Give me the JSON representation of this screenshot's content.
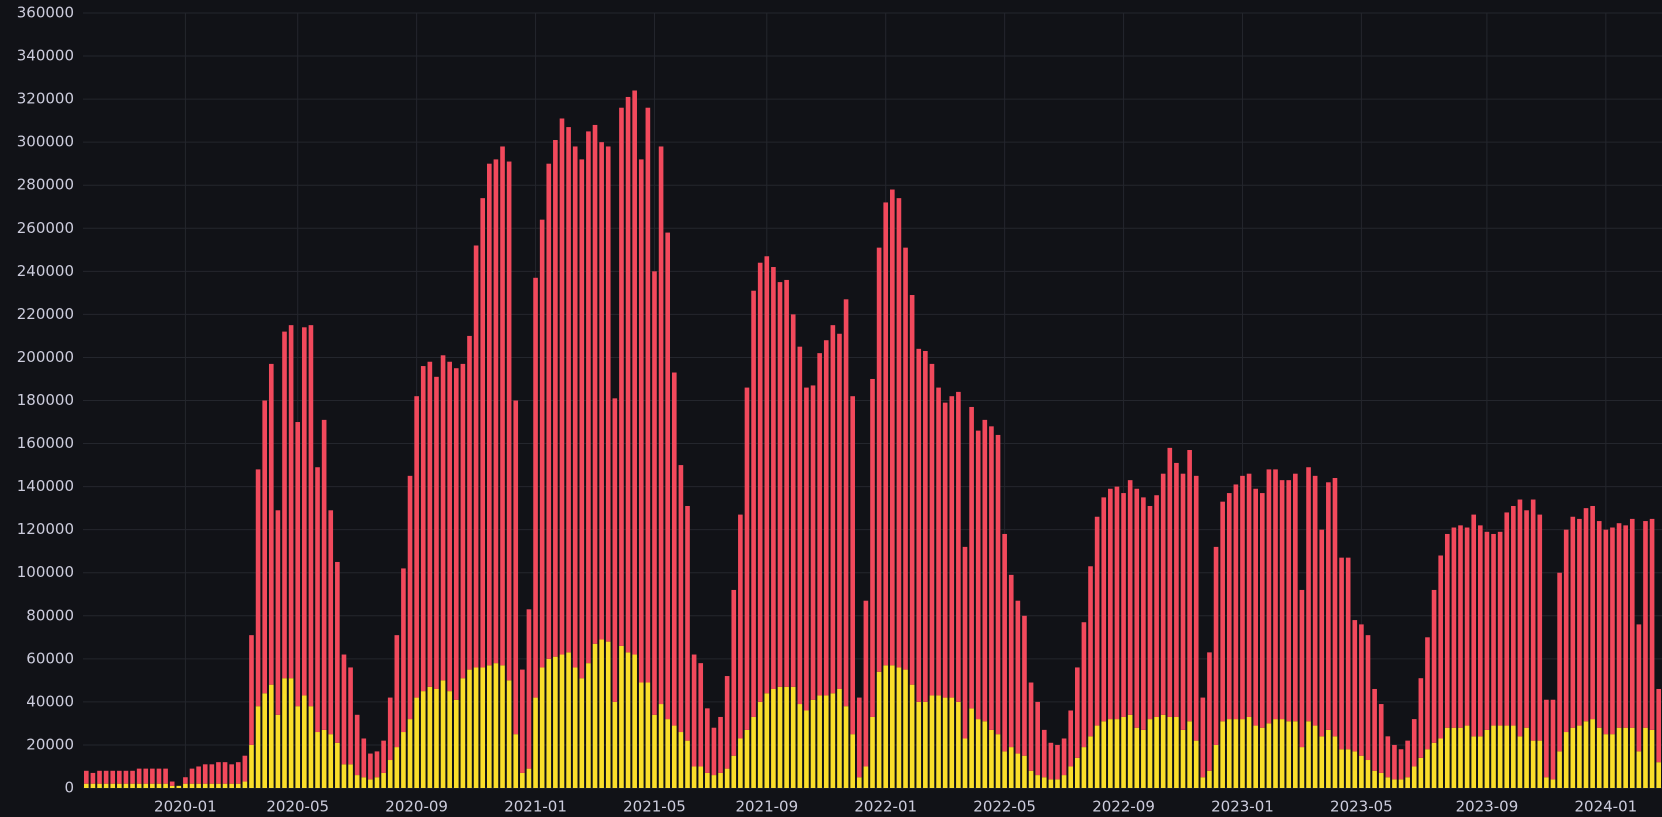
{
  "chart_data": {
    "type": "stacked-bar",
    "categories": [
      null,
      null,
      null,
      null,
      null,
      null,
      null,
      null,
      null,
      null,
      null,
      null,
      null,
      null,
      null,
      "2020-01",
      null,
      null,
      null,
      null,
      null,
      null,
      null,
      null,
      null,
      null,
      null,
      null,
      null,
      null,
      null,
      null,
      "2020-05",
      null,
      null,
      null,
      null,
      null,
      null,
      null,
      null,
      null,
      null,
      null,
      null,
      null,
      null,
      null,
      null,
      null,
      "2020-09",
      null,
      null,
      null,
      null,
      null,
      null,
      null,
      null,
      null,
      null,
      null,
      null,
      null,
      null,
      null,
      null,
      null,
      "2021-01",
      null,
      null,
      null,
      null,
      null,
      null,
      null,
      null,
      null,
      null,
      null,
      null,
      null,
      null,
      null,
      null,
      null,
      "2021-05",
      null,
      null,
      null,
      null,
      null,
      null,
      null,
      null,
      null,
      null,
      null,
      null,
      null,
      null,
      null,
      null,
      "2021-09",
      null,
      null,
      null,
      null,
      null,
      null,
      null,
      null,
      null,
      null,
      null,
      null,
      null,
      null,
      null,
      null,
      null,
      "2022-01",
      null,
      null,
      null,
      null,
      null,
      null,
      null,
      null,
      null,
      null,
      null,
      null,
      null,
      null,
      null,
      null,
      null,
      "2022-05",
      null,
      null,
      null,
      null,
      null,
      null,
      null,
      null,
      null,
      null,
      null,
      null,
      null,
      null,
      null,
      null,
      null,
      "2022-09",
      null,
      null,
      null,
      null,
      null,
      null,
      null,
      null,
      null,
      null,
      null,
      null,
      null,
      null,
      null,
      null,
      null,
      "2023-01",
      null,
      null,
      null,
      null,
      null,
      null,
      null,
      null,
      null,
      null,
      null,
      null,
      null,
      null,
      null,
      null,
      null,
      "2023-05",
      null,
      null,
      null,
      null,
      null,
      null,
      null,
      null,
      null,
      null,
      null,
      null,
      null,
      null,
      null,
      null,
      null,
      null,
      "2023-09",
      null,
      null,
      null,
      null,
      null,
      null,
      null,
      null,
      null,
      null,
      null,
      null,
      null,
      null,
      null,
      null,
      null,
      "2024-01",
      null,
      null,
      null,
      null,
      null,
      null,
      null,
      null
    ],
    "series": [
      {
        "color": "#fade2a",
        "values": [
          2000,
          2000,
          2000,
          2000,
          2000,
          2000,
          2000,
          2000,
          2000,
          2000,
          2000,
          2000,
          2000,
          1000,
          1000,
          2000,
          2000,
          2000,
          2000,
          2000,
          2000,
          2000,
          2000,
          2000,
          3000,
          20000,
          38000,
          44000,
          48000,
          34000,
          51000,
          51000,
          38000,
          43000,
          38000,
          26000,
          27000,
          25000,
          21000,
          11000,
          11000,
          6000,
          5000,
          4000,
          5000,
          7000,
          13000,
          19000,
          26000,
          32000,
          42000,
          45000,
          47000,
          46000,
          50000,
          45000,
          41000,
          51000,
          55000,
          56000,
          56000,
          57000,
          58000,
          57000,
          50000,
          25000,
          7000,
          9000,
          42000,
          56000,
          60000,
          61000,
          62000,
          63000,
          56000,
          51000,
          58000,
          67000,
          69000,
          68000,
          40000,
          66000,
          63000,
          62000,
          49000,
          49000,
          34000,
          39000,
          32000,
          29000,
          26000,
          22000,
          10000,
          10000,
          7000,
          6000,
          7000,
          9000,
          15000,
          23000,
          27000,
          33000,
          40000,
          44000,
          46000,
          47000,
          47000,
          47000,
          39000,
          36000,
          41000,
          43000,
          43000,
          44000,
          46000,
          38000,
          25000,
          5000,
          10000,
          33000,
          54000,
          57000,
          57000,
          56000,
          55000,
          48000,
          40000,
          40000,
          43000,
          43000,
          42000,
          42000,
          40000,
          23000,
          37000,
          32000,
          31000,
          27000,
          25000,
          17000,
          19000,
          16000,
          15000,
          8000,
          6000,
          5000,
          4000,
          4000,
          6000,
          10000,
          14000,
          19000,
          24000,
          29000,
          31000,
          32000,
          32000,
          33000,
          34000,
          28000,
          27000,
          32000,
          33000,
          34000,
          33000,
          33000,
          27000,
          31000,
          22000,
          5000,
          8000,
          20000,
          31000,
          32000,
          32000,
          32000,
          33000,
          29000,
          28000,
          30000,
          32000,
          32000,
          31000,
          31000,
          19000,
          31000,
          29000,
          24000,
          27000,
          24000,
          18000,
          18000,
          17000,
          15000,
          13000,
          8000,
          7000,
          5000,
          4000,
          4000,
          5000,
          10000,
          14000,
          18000,
          21000,
          23000,
          28000,
          28000,
          28000,
          29000,
          24000,
          24000,
          27000,
          29000,
          29000,
          29000,
          29000,
          24000,
          28000,
          22000,
          22000,
          5000,
          4000,
          17000,
          26000,
          28000,
          29000,
          31000,
          32000,
          28000,
          25000,
          25000,
          28000,
          28000,
          28000,
          17000,
          28000,
          27000,
          12000
        ]
      },
      {
        "color": "#f2495c",
        "values": [
          6000,
          5000,
          6000,
          6000,
          6000,
          6000,
          6000,
          6000,
          7000,
          7000,
          7000,
          7000,
          7000,
          2000,
          0,
          3000,
          7000,
          8000,
          9000,
          9000,
          10000,
          10000,
          9000,
          10000,
          12000,
          51000,
          110000,
          136000,
          149000,
          95000,
          161000,
          164000,
          132000,
          171000,
          177000,
          123000,
          144000,
          104000,
          84000,
          51000,
          45000,
          28000,
          18000,
          12000,
          12000,
          15000,
          29000,
          52000,
          76000,
          113000,
          140000,
          151000,
          151000,
          145000,
          151000,
          153000,
          154000,
          146000,
          155000,
          196000,
          218000,
          233000,
          234000,
          241000,
          241000,
          155000,
          48000,
          74000,
          195000,
          208000,
          230000,
          240000,
          249000,
          244000,
          242000,
          241000,
          247000,
          241000,
          231000,
          230000,
          141000,
          250000,
          258000,
          262000,
          243000,
          267000,
          206000,
          259000,
          226000,
          164000,
          124000,
          109000,
          52000,
          48000,
          30000,
          22000,
          26000,
          43000,
          77000,
          104000,
          159000,
          198000,
          204000,
          203000,
          196000,
          188000,
          189000,
          173000,
          166000,
          150000,
          146000,
          159000,
          165000,
          171000,
          165000,
          189000,
          157000,
          37000,
          77000,
          157000,
          197000,
          215000,
          221000,
          218000,
          196000,
          181000,
          164000,
          163000,
          154000,
          143000,
          137000,
          140000,
          144000,
          89000,
          140000,
          134000,
          140000,
          141000,
          139000,
          101000,
          80000,
          71000,
          65000,
          41000,
          34000,
          22000,
          17000,
          16000,
          17000,
          26000,
          42000,
          58000,
          79000,
          97000,
          104000,
          107000,
          108000,
          104000,
          109000,
          111000,
          108000,
          99000,
          103000,
          112000,
          125000,
          118000,
          119000,
          126000,
          123000,
          37000,
          55000,
          92000,
          102000,
          105000,
          109000,
          113000,
          113000,
          110000,
          109000,
          118000,
          116000,
          111000,
          112000,
          115000,
          73000,
          118000,
          116000,
          96000,
          115000,
          120000,
          89000,
          89000,
          61000,
          61000,
          58000,
          38000,
          32000,
          19000,
          16000,
          14000,
          17000,
          22000,
          37000,
          52000,
          71000,
          85000,
          90000,
          93000,
          94000,
          92000,
          103000,
          98000,
          92000,
          89000,
          90000,
          99000,
          102000,
          110000,
          101000,
          112000,
          105000,
          36000,
          37000,
          83000,
          94000,
          98000,
          96000,
          99000,
          99000,
          96000,
          95000,
          96000,
          95000,
          94000,
          97000,
          59000,
          96000,
          98000,
          34000
        ]
      }
    ],
    "ylim": [
      0,
      360000
    ],
    "yticks": [
      0,
      20000,
      40000,
      60000,
      80000,
      100000,
      120000,
      140000,
      160000,
      180000,
      200000,
      220000,
      240000,
      260000,
      280000,
      300000,
      320000,
      340000,
      360000
    ],
    "grid": true
  }
}
